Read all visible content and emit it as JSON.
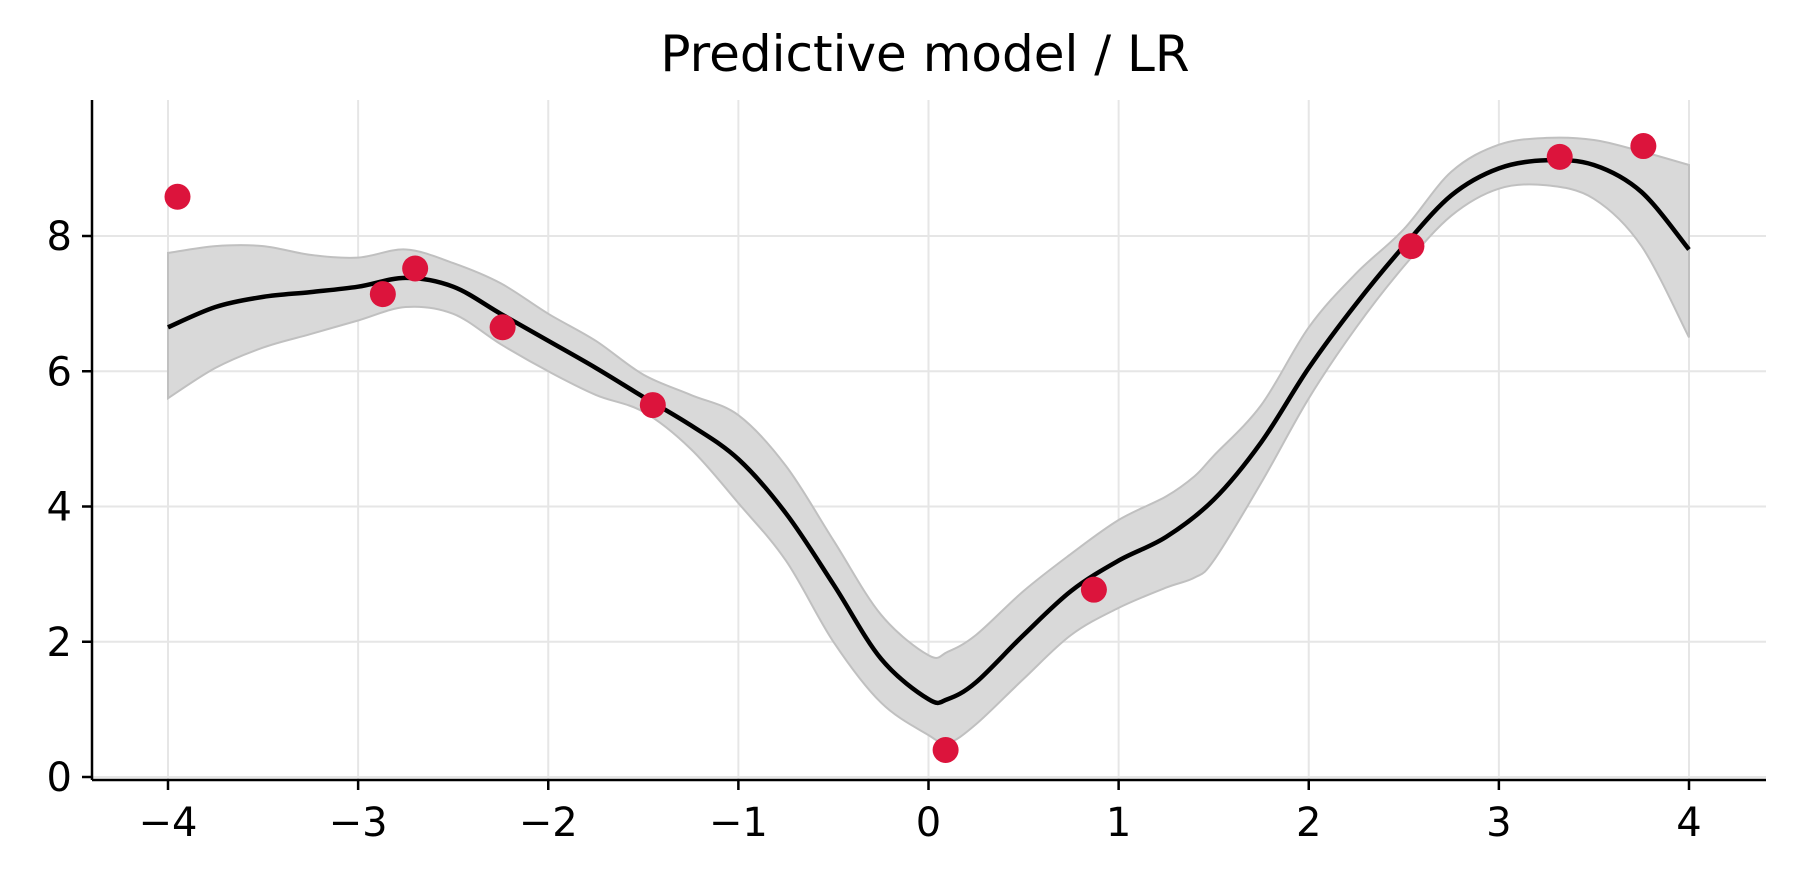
{
  "chart_data": {
    "type": "line",
    "title": "Predictive model / LR",
    "xlabel": "",
    "ylabel": "",
    "xlim": [
      -4.4,
      4.4
    ],
    "ylim": [
      -0.05,
      10.0
    ],
    "grid": true,
    "legend": "none",
    "x_ticks": [
      -4,
      -3,
      -2,
      -1,
      0,
      1,
      2,
      3,
      4
    ],
    "x_tick_labels": [
      "−4",
      "−3",
      "−2",
      "−1",
      "0",
      "1",
      "2",
      "3",
      "4"
    ],
    "y_ticks": [
      0,
      2,
      4,
      6,
      8
    ],
    "y_tick_labels": [
      "0",
      "2",
      "4",
      "6",
      "8"
    ],
    "colors": {
      "mean_line": "#000000",
      "band_fill": "#d9d9d9",
      "band_edge": "#c0c0c0",
      "points": "#dc143c",
      "grid": "#e6e6e6",
      "axis": "#000000"
    },
    "series": [
      {
        "kind": "mean",
        "x": [
          -4.0,
          -3.75,
          -3.5,
          -3.25,
          -3.0,
          -2.75,
          -2.5,
          -2.25,
          -2.0,
          -1.75,
          -1.5,
          -1.25,
          -1.0,
          -0.75,
          -0.5,
          -0.25,
          0.0,
          0.1,
          0.25,
          0.5,
          0.75,
          1.0,
          1.25,
          1.5,
          1.75,
          2.0,
          2.25,
          2.5,
          2.75,
          3.0,
          3.25,
          3.5,
          3.75,
          4.0
        ],
        "y": [
          6.65,
          6.95,
          7.1,
          7.17,
          7.25,
          7.38,
          7.25,
          6.85,
          6.45,
          6.05,
          5.62,
          5.2,
          4.7,
          3.9,
          2.85,
          1.75,
          1.15,
          1.15,
          1.4,
          2.1,
          2.75,
          3.2,
          3.55,
          4.1,
          4.95,
          6.05,
          7.0,
          7.85,
          8.6,
          9.0,
          9.12,
          9.05,
          8.65,
          7.8
        ]
      },
      {
        "kind": "band_upper",
        "x": [
          -4.0,
          -3.75,
          -3.5,
          -3.25,
          -3.0,
          -2.75,
          -2.5,
          -2.25,
          -2.0,
          -1.75,
          -1.5,
          -1.25,
          -1.0,
          -0.75,
          -0.5,
          -0.25,
          0.0,
          0.1,
          0.25,
          0.5,
          0.75,
          1.0,
          1.25,
          1.4,
          1.5,
          1.75,
          2.0,
          2.25,
          2.5,
          2.75,
          3.0,
          3.25,
          3.5,
          3.75,
          4.0
        ],
        "y": [
          7.75,
          7.85,
          7.85,
          7.72,
          7.68,
          7.8,
          7.6,
          7.3,
          6.85,
          6.45,
          5.95,
          5.65,
          5.35,
          4.6,
          3.5,
          2.4,
          1.8,
          1.85,
          2.1,
          2.75,
          3.3,
          3.8,
          4.15,
          4.45,
          4.75,
          5.5,
          6.65,
          7.45,
          8.1,
          8.95,
          9.35,
          9.45,
          9.42,
          9.25,
          9.05
        ]
      },
      {
        "kind": "band_lower",
        "x": [
          -4.0,
          -3.75,
          -3.5,
          -3.25,
          -3.0,
          -2.75,
          -2.5,
          -2.25,
          -2.0,
          -1.75,
          -1.5,
          -1.25,
          -1.0,
          -0.75,
          -0.5,
          -0.25,
          0.0,
          0.1,
          0.25,
          0.5,
          0.75,
          1.0,
          1.25,
          1.4,
          1.5,
          1.75,
          2.0,
          2.25,
          2.5,
          2.75,
          3.0,
          3.25,
          3.5,
          3.75,
          4.0
        ],
        "y": [
          5.6,
          6.05,
          6.35,
          6.55,
          6.75,
          6.95,
          6.85,
          6.4,
          6.0,
          5.65,
          5.4,
          4.85,
          4.05,
          3.2,
          2.0,
          1.1,
          0.62,
          0.5,
          0.78,
          1.45,
          2.1,
          2.5,
          2.8,
          2.95,
          3.2,
          4.35,
          5.6,
          6.65,
          7.55,
          8.3,
          8.7,
          8.75,
          8.55,
          7.85,
          6.5
        ]
      },
      {
        "kind": "observations",
        "x": [
          -3.95,
          -2.87,
          -2.7,
          -2.24,
          -1.45,
          0.09,
          0.87,
          2.54,
          3.32,
          3.76
        ],
        "y": [
          8.58,
          7.14,
          7.52,
          6.65,
          5.5,
          0.4,
          2.77,
          7.85,
          9.17,
          9.33
        ]
      }
    ]
  }
}
